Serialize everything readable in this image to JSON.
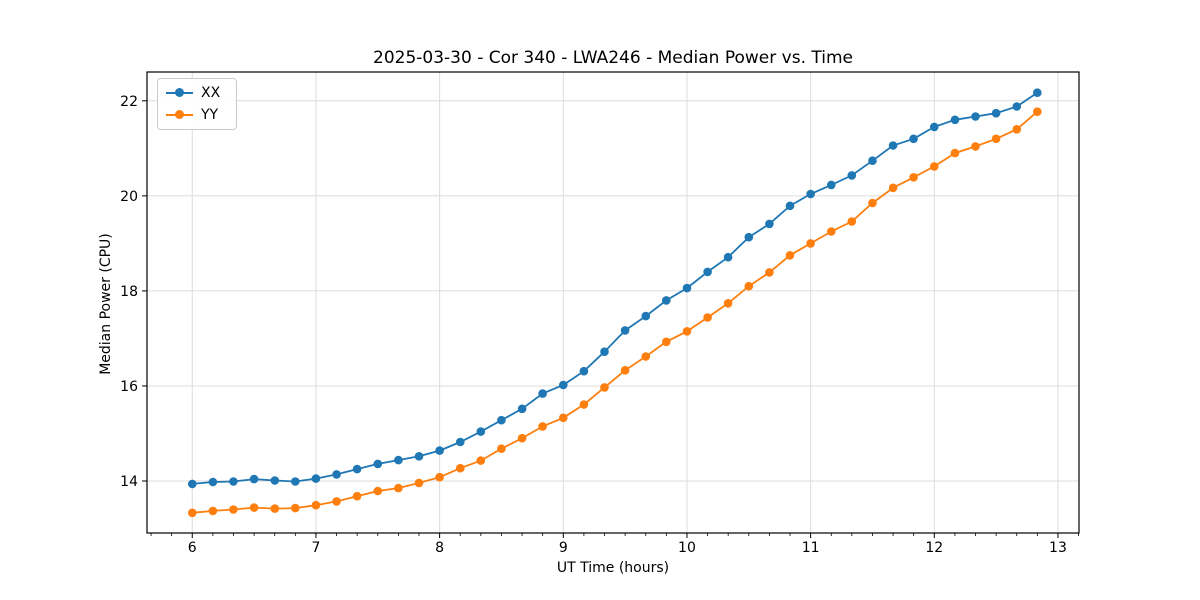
{
  "chart_data": {
    "type": "line",
    "title": "2025-03-30 - Cor 340 - LWA246 - Median Power vs. Time",
    "xlabel": "UT Time (hours)",
    "ylabel": "Median Power (CPU)",
    "xlim": [
      5.634,
      13.17
    ],
    "ylim": [
      12.906,
      22.606
    ],
    "xticks": [
      6,
      7,
      8,
      9,
      10,
      11,
      12,
      13
    ],
    "yticks": [
      14,
      16,
      18,
      20,
      22
    ],
    "x_minor_step": 0.166667,
    "grid": true,
    "grid_color": "#dcdcdc",
    "legend_position": "upper-left",
    "x": [
      6.0,
      6.167,
      6.333,
      6.5,
      6.667,
      6.833,
      7.0,
      7.167,
      7.333,
      7.5,
      7.667,
      7.833,
      8.0,
      8.167,
      8.333,
      8.5,
      8.667,
      8.833,
      9.0,
      9.167,
      9.333,
      9.5,
      9.667,
      9.833,
      10.0,
      10.167,
      10.333,
      10.5,
      10.667,
      10.833,
      11.0,
      11.167,
      11.333,
      11.5,
      11.667,
      11.833,
      12.0,
      12.167,
      12.333,
      12.5,
      12.667,
      12.833
    ],
    "series": [
      {
        "name": "XX",
        "color": "#1f77b4",
        "values": [
          13.94,
          13.98,
          13.99,
          14.04,
          14.01,
          13.99,
          14.05,
          14.14,
          14.25,
          14.36,
          14.44,
          14.52,
          14.64,
          14.82,
          15.04,
          15.28,
          15.52,
          15.84,
          16.02,
          16.31,
          16.72,
          17.17,
          17.47,
          17.8,
          18.06,
          18.4,
          18.71,
          19.13,
          19.41,
          19.79,
          20.04,
          20.23,
          20.43,
          20.74,
          21.06,
          21.2,
          21.45,
          21.6,
          21.67,
          21.74,
          21.88,
          22.17
        ]
      },
      {
        "name": "YY",
        "color": "#ff7f0e",
        "values": [
          13.33,
          13.37,
          13.4,
          13.44,
          13.42,
          13.43,
          13.49,
          13.57,
          13.68,
          13.79,
          13.85,
          13.96,
          14.08,
          14.27,
          14.43,
          14.68,
          14.9,
          15.15,
          15.33,
          15.61,
          15.97,
          16.33,
          16.62,
          16.93,
          17.15,
          17.44,
          17.74,
          18.1,
          18.39,
          18.75,
          19.0,
          19.25,
          19.46,
          19.85,
          20.17,
          20.39,
          20.62,
          20.9,
          21.04,
          21.2,
          21.4,
          21.77
        ]
      }
    ]
  }
}
